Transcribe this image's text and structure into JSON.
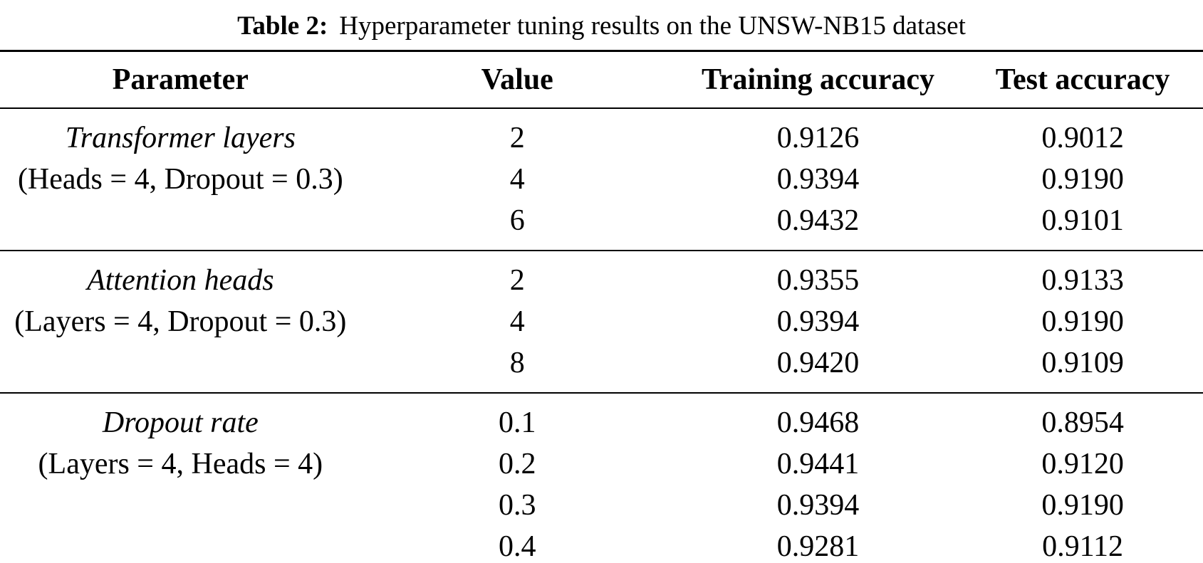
{
  "caption": {
    "label": "Table 2:",
    "text": "Hyperparameter tuning results on the UNSW-NB15 dataset"
  },
  "table": {
    "columns": [
      "Parameter",
      "Value",
      "Training accuracy",
      "Test accuracy"
    ],
    "groups": [
      {
        "name": "Transformer layers",
        "condition": "(Heads = 4, Dropout = 0.3)",
        "rows": [
          {
            "value": "2",
            "training_accuracy": "0.9126",
            "test_accuracy": "0.9012"
          },
          {
            "value": "4",
            "training_accuracy": "0.9394",
            "test_accuracy": "0.9190"
          },
          {
            "value": "6",
            "training_accuracy": "0.9432",
            "test_accuracy": "0.9101"
          }
        ]
      },
      {
        "name": "Attention heads",
        "condition": "(Layers = 4, Dropout = 0.3)",
        "rows": [
          {
            "value": "2",
            "training_accuracy": "0.9355",
            "test_accuracy": "0.9133"
          },
          {
            "value": "4",
            "training_accuracy": "0.9394",
            "test_accuracy": "0.9190"
          },
          {
            "value": "8",
            "training_accuracy": "0.9420",
            "test_accuracy": "0.9109"
          }
        ]
      },
      {
        "name": "Dropout rate",
        "condition": "(Layers = 4, Heads = 4)",
        "rows": [
          {
            "value": "0.1",
            "training_accuracy": "0.9468",
            "test_accuracy": "0.8954"
          },
          {
            "value": "0.2",
            "training_accuracy": "0.9441",
            "test_accuracy": "0.9120"
          },
          {
            "value": "0.3",
            "training_accuracy": "0.9394",
            "test_accuracy": "0.9190"
          },
          {
            "value": "0.4",
            "training_accuracy": "0.9281",
            "test_accuracy": "0.9112"
          }
        ]
      }
    ]
  },
  "colors": {
    "text": "#000000",
    "background": "#ffffff",
    "rule": "#000000"
  }
}
